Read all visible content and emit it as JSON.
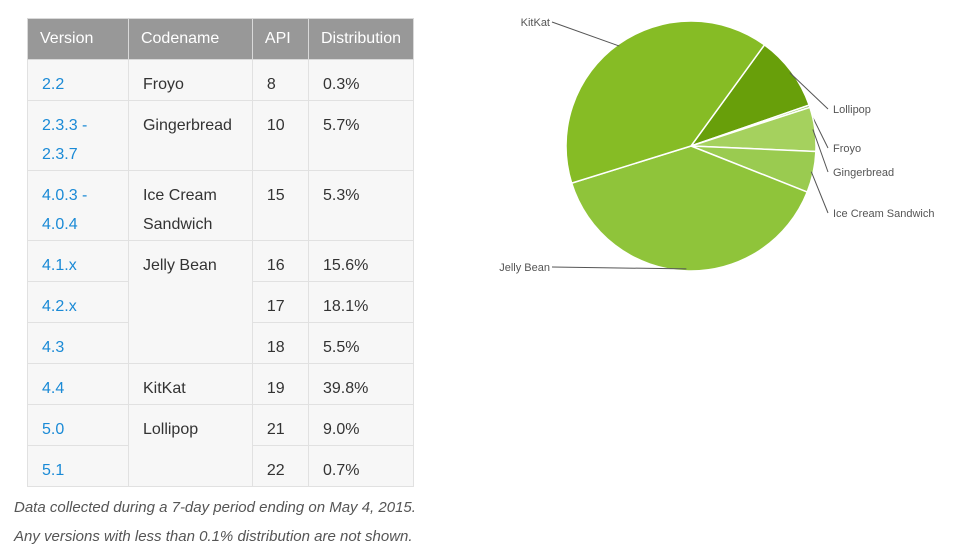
{
  "table": {
    "headers": [
      "Version",
      "Codename",
      "API",
      "Distribution"
    ],
    "rows": [
      {
        "version_lines": [
          "2.2"
        ],
        "codename_lines": [
          "Froyo"
        ],
        "api": "8",
        "distribution": "0.3%"
      },
      {
        "version_lines": [
          "2.3.3 -",
          "2.3.7"
        ],
        "codename_lines": [
          "Gingerbread"
        ],
        "api": "10",
        "distribution": "5.7%"
      },
      {
        "version_lines": [
          "4.0.3 -",
          "4.0.4"
        ],
        "codename_lines": [
          "Ice Cream",
          "Sandwich"
        ],
        "api": "15",
        "distribution": "5.3%"
      },
      {
        "version_lines": [
          "4.1.x"
        ],
        "codename_lines": [
          "Jelly Bean"
        ],
        "api": "16",
        "distribution": "15.6%"
      },
      {
        "version_lines": [
          "4.2.x"
        ],
        "codename_lines": [],
        "api": "17",
        "distribution": "18.1%"
      },
      {
        "version_lines": [
          "4.3"
        ],
        "codename_lines": [],
        "api": "18",
        "distribution": "5.5%"
      },
      {
        "version_lines": [
          "4.4"
        ],
        "codename_lines": [
          "KitKat"
        ],
        "api": "19",
        "distribution": "39.8%"
      },
      {
        "version_lines": [
          "5.0"
        ],
        "codename_lines": [
          "Lollipop"
        ],
        "api": "21",
        "distribution": "9.0%"
      },
      {
        "version_lines": [
          "5.1"
        ],
        "codename_lines": [],
        "api": "22",
        "distribution": "0.7%"
      }
    ]
  },
  "notes": {
    "line1": "Data collected during a 7-day period ending on May 4, 2015.",
    "line2": "Any versions with less than 0.1% distribution are not shown."
  },
  "chart_data": {
    "type": "pie",
    "title": "",
    "slices": [
      {
        "label": "Lollipop",
        "value": 9.7,
        "color": "#689f0a"
      },
      {
        "label": "Froyo",
        "value": 0.3,
        "color": "#8bc34a"
      },
      {
        "label": "Gingerbread",
        "value": 5.7,
        "color": "#a5d15e"
      },
      {
        "label": "Ice Cream Sandwich",
        "value": 5.3,
        "color": "#9acb50"
      },
      {
        "label": "Jelly Bean",
        "value": 39.2,
        "color": "#8fc43a"
      },
      {
        "label": "KitKat",
        "value": 39.8,
        "color": "#86bc25"
      }
    ],
    "legend": "callout-labels"
  }
}
